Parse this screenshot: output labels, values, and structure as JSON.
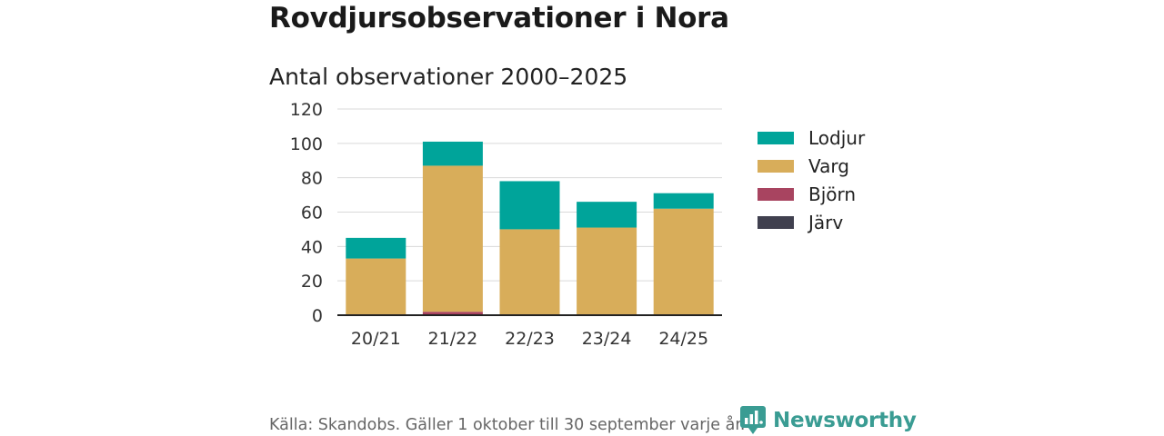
{
  "header": {
    "title": "Rovdjursobservationer i Nora",
    "subtitle": "Antal observationer 2000–2025"
  },
  "chart_data": {
    "type": "bar",
    "stacked": true,
    "categories": [
      "20/21",
      "21/22",
      "22/23",
      "23/24",
      "24/25"
    ],
    "series": [
      {
        "name": "Järv",
        "color": "#40404f",
        "values": [
          0,
          0,
          0,
          0,
          0
        ]
      },
      {
        "name": "Björn",
        "color": "#a84460",
        "values": [
          0,
          2,
          0,
          0,
          0
        ]
      },
      {
        "name": "Varg",
        "color": "#d8ad5a",
        "values": [
          33,
          85,
          50,
          51,
          62
        ]
      },
      {
        "name": "Lodjur",
        "color": "#00a49a",
        "values": [
          12,
          14,
          28,
          15,
          9
        ]
      }
    ],
    "legend_order": [
      "Lodjur",
      "Varg",
      "Björn",
      "Järv"
    ],
    "yticks": [
      0,
      20,
      40,
      60,
      80,
      100,
      120
    ],
    "ylim": [
      0,
      120
    ],
    "xlabel": "",
    "ylabel": "",
    "grid": true,
    "legend_position": "right"
  },
  "footer": {
    "source": "Källa: Skandobs. Gäller 1 oktober till 30 september varje år.",
    "brand": "Newsworthy",
    "logo_icon": "newsworthy-logo-icon",
    "brand_color": "#3a9c93"
  }
}
